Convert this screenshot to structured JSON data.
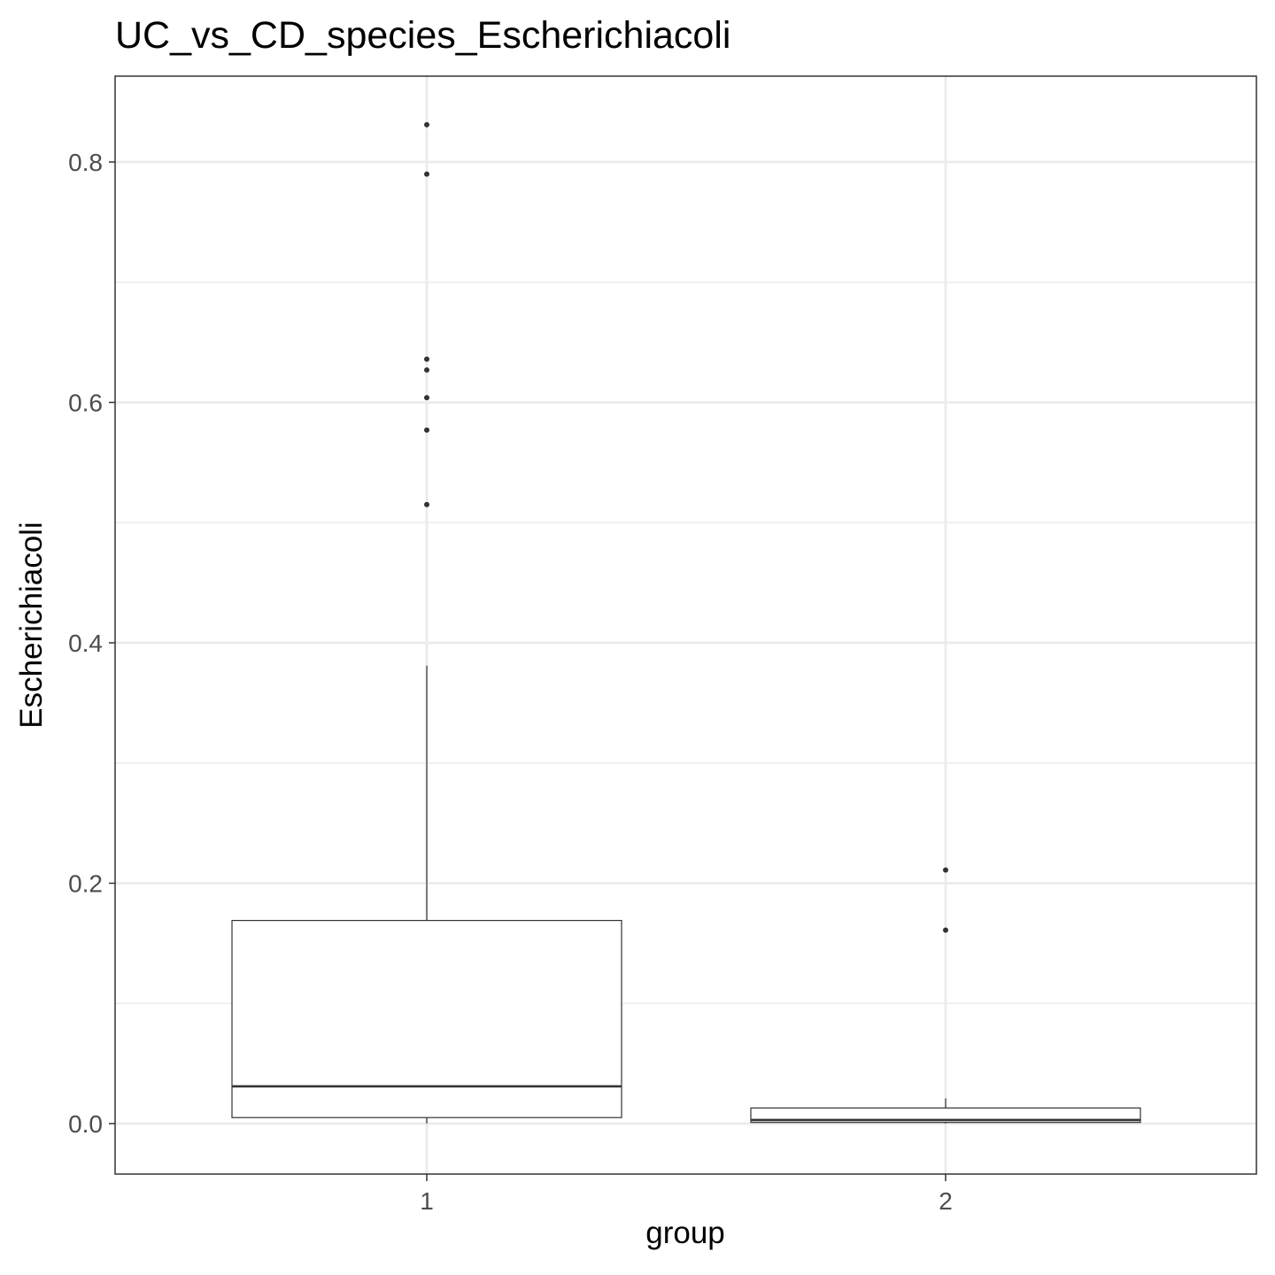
{
  "chart_data": {
    "type": "boxplot",
    "title": "UC_vs_CD_species_Escherichiacoli",
    "xlabel": "group",
    "ylabel": "Escherichiacoli",
    "categories": [
      "1",
      "2"
    ],
    "ylim": [
      -0.04,
      0.87
    ],
    "yticks": [
      "0.0",
      "0.2",
      "0.4",
      "0.6",
      "0.8"
    ],
    "ytick_values": [
      0.0,
      0.2,
      0.4,
      0.6,
      0.8
    ],
    "grid": true,
    "colors": {
      "box_fill": "#ffffff",
      "box_stroke": "#333333",
      "grid": "#ebebeb",
      "outlier": "#333333"
    },
    "boxes": [
      {
        "group": "1",
        "whisker_low": 0.0,
        "q1": 0.005,
        "median": 0.031,
        "q3": 0.169,
        "whisker_high": 0.381,
        "outliers": [
          0.831,
          0.79,
          0.636,
          0.627,
          0.604,
          0.577,
          0.515
        ]
      },
      {
        "group": "2",
        "whisker_low": 0.0,
        "q1": 0.001,
        "median": 0.003,
        "q3": 0.013,
        "whisker_high": 0.021,
        "outliers": [
          0.211,
          0.161
        ]
      }
    ]
  }
}
